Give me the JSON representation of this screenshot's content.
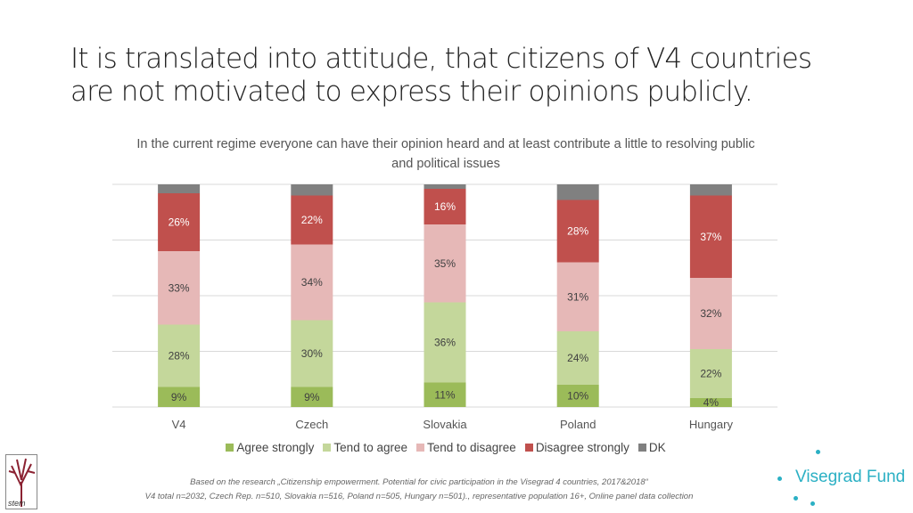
{
  "title": "It is translated into attitude, that citizens of V4 countries are not motivated to express their opinions publicly.",
  "chart_data": {
    "type": "bar",
    "stacked": true,
    "title": "In the current regime everyone can have their opinion heard and at least contribute a little to resolving public and political issues",
    "categories": [
      "V4",
      "Czech",
      "Slovakia",
      "Poland",
      "Hungary"
    ],
    "ylim": [
      0,
      100
    ],
    "grid": true,
    "legend_position": "bottom",
    "series": [
      {
        "name": "Agree strongly",
        "color": "#9bbb59",
        "values": [
          9,
          9,
          11,
          10,
          4
        ]
      },
      {
        "name": "Tend to agree",
        "color": "#c4d79b",
        "values": [
          28,
          30,
          36,
          24,
          22
        ]
      },
      {
        "name": "Tend to disagree",
        "color": "#e6b8b7",
        "values": [
          33,
          34,
          35,
          31,
          32
        ]
      },
      {
        "name": "Disagree strongly",
        "color": "#c0504d",
        "values": [
          26,
          22,
          16,
          28,
          37
        ]
      },
      {
        "name": "DK",
        "color": "#808080",
        "values": [
          4,
          5,
          2,
          7,
          5
        ]
      }
    ]
  },
  "footnote": {
    "line1": "Based on the research  „Citizenship empowerment. Potential for civic participation in the Visegrad 4 countries, 2017&2018“",
    "line2": "V4 total n=2032, Czech Rep. n=510, Slovakia n=516, Poland n=505, Hungary n=501)., representative population 16+, Online panel data collection"
  },
  "logos": {
    "stem": "stem",
    "visegrad": "Visegrad Fund"
  }
}
